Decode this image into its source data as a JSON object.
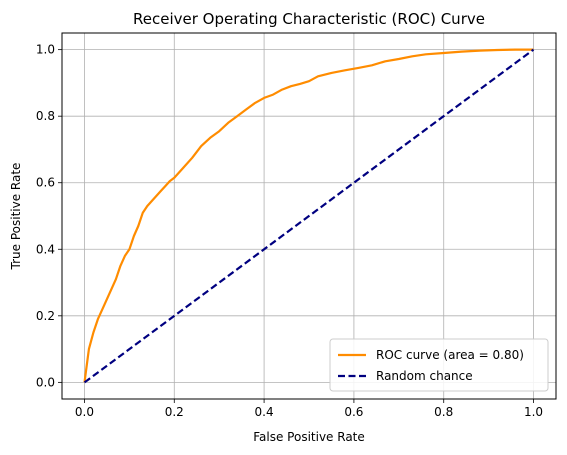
{
  "chart_data": {
    "type": "line",
    "title": "Receiver Operating Characteristic (ROC) Curve",
    "xlabel": "False Positive Rate",
    "ylabel": "True Positive Rate",
    "xlim": [
      -0.05,
      1.05
    ],
    "ylim": [
      -0.05,
      1.05
    ],
    "xticks": [
      "0.0",
      "0.2",
      "0.4",
      "0.6",
      "0.8",
      "1.0"
    ],
    "yticks": [
      "0.0",
      "0.2",
      "0.4",
      "0.6",
      "0.8",
      "1.0"
    ],
    "grid": true,
    "legend_position": "lower-right",
    "series": [
      {
        "name": "ROC curve (area = 0.80)",
        "color": "#ff8c00",
        "style": "solid",
        "x": [
          0.0,
          0.005,
          0.01,
          0.02,
          0.03,
          0.04,
          0.05,
          0.06,
          0.07,
          0.08,
          0.09,
          0.1,
          0.11,
          0.12,
          0.13,
          0.14,
          0.15,
          0.16,
          0.17,
          0.18,
          0.19,
          0.2,
          0.22,
          0.24,
          0.26,
          0.28,
          0.3,
          0.32,
          0.34,
          0.36,
          0.38,
          0.4,
          0.42,
          0.44,
          0.46,
          0.48,
          0.5,
          0.52,
          0.55,
          0.58,
          0.61,
          0.64,
          0.67,
          0.7,
          0.73,
          0.76,
          0.8,
          0.84,
          0.88,
          0.92,
          0.96,
          1.0
        ],
        "y": [
          0.0,
          0.05,
          0.1,
          0.15,
          0.19,
          0.22,
          0.25,
          0.28,
          0.31,
          0.35,
          0.38,
          0.4,
          0.44,
          0.47,
          0.51,
          0.53,
          0.545,
          0.56,
          0.575,
          0.59,
          0.605,
          0.615,
          0.645,
          0.675,
          0.71,
          0.735,
          0.755,
          0.78,
          0.8,
          0.82,
          0.84,
          0.855,
          0.865,
          0.88,
          0.89,
          0.897,
          0.905,
          0.92,
          0.93,
          0.938,
          0.945,
          0.953,
          0.965,
          0.972,
          0.98,
          0.986,
          0.99,
          0.994,
          0.997,
          0.999,
          1.0,
          1.0
        ]
      },
      {
        "name": "Random chance",
        "color": "#000080",
        "style": "dashed",
        "x": [
          0.0,
          1.0
        ],
        "y": [
          0.0,
          1.0
        ]
      }
    ]
  }
}
